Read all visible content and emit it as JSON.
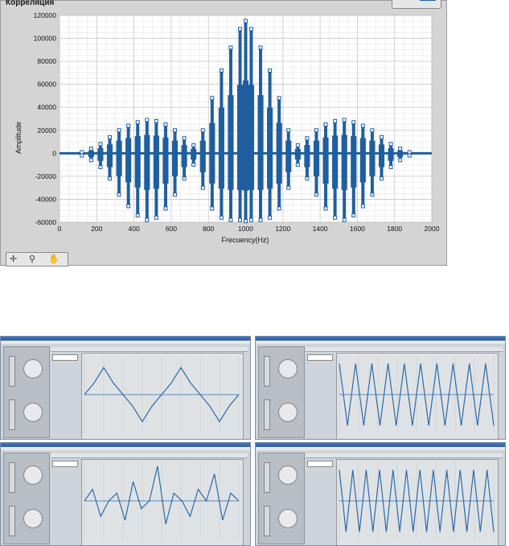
{
  "window": {
    "title": "Корреляция"
  },
  "legend": {
    "plot_color": "#1f5f9f"
  },
  "chart_data": {
    "type": "line",
    "title": "",
    "xlabel": "Frecuency(Hz)",
    "ylabel": "Amplitude",
    "xlim": [
      0,
      2000
    ],
    "ylim": [
      -60000,
      120000
    ],
    "xticks": [
      0,
      200,
      400,
      600,
      800,
      1000,
      1200,
      1400,
      1600,
      1800,
      2000
    ],
    "yticks": [
      -60000,
      -40000,
      -20000,
      0,
      20000,
      40000,
      60000,
      80000,
      100000,
      120000
    ],
    "xtick_labels": [
      "0",
      "200",
      "400",
      "600",
      "800",
      "1000",
      "1200",
      "1400",
      "1600",
      "1800",
      "2000"
    ],
    "ytick_labels": [
      "-60000",
      "-40000",
      "-20000",
      "0",
      "20000",
      "40000",
      "60000",
      "80000",
      "100000",
      "120000"
    ],
    "grid": true,
    "series": [
      {
        "color": "#1f5f9f",
        "peak_x": [
          120,
          170,
          220,
          270,
          320,
          370,
          420,
          470,
          520,
          570,
          620,
          670,
          720,
          770,
          820,
          870,
          920,
          970,
          1000,
          1030,
          1080,
          1130,
          1180,
          1230,
          1280,
          1330,
          1380,
          1430,
          1480,
          1530,
          1580,
          1630,
          1680,
          1730,
          1780,
          1830,
          1880
        ],
        "peak_high": [
          1000,
          4000,
          8000,
          14000,
          20000,
          24000,
          27000,
          29000,
          28000,
          25000,
          20000,
          13000,
          7000,
          20000,
          48000,
          72000,
          92000,
          108000,
          115000,
          108000,
          92000,
          72000,
          48000,
          20000,
          7000,
          13000,
          20000,
          25000,
          28000,
          29000,
          27000,
          24000,
          20000,
          14000,
          8000,
          4000,
          1000
        ],
        "peak_low": [
          -2000,
          -6000,
          -12000,
          -22000,
          -36000,
          -46000,
          -54000,
          -58000,
          -56000,
          -48000,
          -36000,
          -22000,
          -10000,
          -30000,
          -48000,
          -56000,
          -58000,
          -58000,
          -59000,
          -58000,
          -58000,
          -56000,
          -48000,
          -30000,
          -10000,
          -22000,
          -36000,
          -48000,
          -56000,
          -58000,
          -54000,
          -46000,
          -36000,
          -22000,
          -12000,
          -6000,
          -2000
        ]
      }
    ]
  },
  "palette": {
    "icon1": "cursor-icon",
    "icon2": "zoom-icon",
    "icon3": "pan-icon"
  },
  "thumbnails": [
    {
      "name": "triangle",
      "points": [
        0,
        0.3,
        0.7,
        0.3,
        0,
        -0.3,
        -0.7,
        -0.3,
        0,
        0.3,
        0.7,
        0.3,
        0,
        -0.3,
        -0.7,
        -0.3,
        0
      ]
    },
    {
      "name": "sawtooth",
      "points": [
        0.8,
        -0.8,
        0.8,
        -0.8,
        0.8,
        -0.8,
        0.8,
        -0.8,
        0.8,
        -0.8,
        0.8,
        -0.8,
        0.8,
        -0.8,
        0.8,
        -0.8,
        0.8,
        -0.8,
        0.8,
        -0.8
      ]
    },
    {
      "name": "pulses",
      "points": [
        0,
        0.3,
        -0.4,
        0,
        0.2,
        -0.5,
        0.5,
        -0.2,
        0,
        0.9,
        -0.6,
        0.2,
        0,
        -0.4,
        0.3,
        0,
        0.7,
        -0.5,
        0.2,
        0
      ]
    },
    {
      "name": "dense",
      "points": [
        0.8,
        -0.8,
        0.8,
        -0.8,
        0.8,
        -0.8,
        0.8,
        -0.8,
        0.8,
        -0.8,
        0.8,
        -0.8,
        0.8,
        -0.8,
        0.8,
        -0.8,
        0.8,
        -0.8,
        0.8,
        -0.8,
        0.8,
        -0.8,
        0.8,
        -0.8
      ]
    }
  ]
}
